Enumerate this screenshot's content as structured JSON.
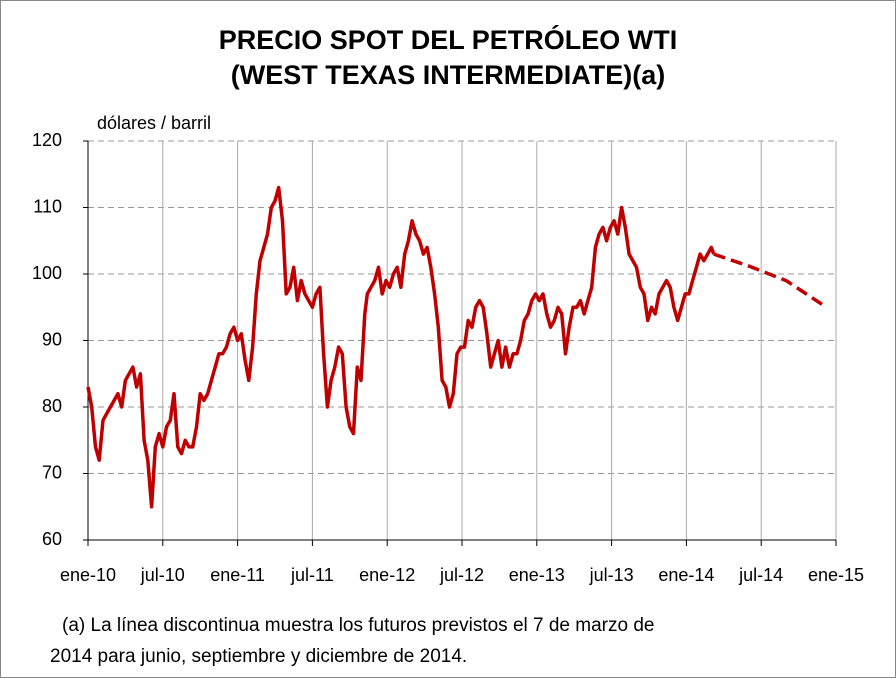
{
  "chart_data": {
    "type": "line",
    "title": [
      "PRECIO SPOT DEL PETRÓLEO WTI",
      "(WEST TEXAS INTERMEDIATE)(a)"
    ],
    "y_label": "dólares / barril",
    "note": [
      "(a) La línea discontinua  muestra los futuros  previstos  el 7 de marzo de",
      "2014 para  junio,  septiembre y diciembre de 2014."
    ],
    "xlim": [
      0,
      60
    ],
    "xticks": [
      {
        "value": 0,
        "label": "ene-10"
      },
      {
        "value": 6,
        "label": "jul-10"
      },
      {
        "value": 12,
        "label": "ene-11"
      },
      {
        "value": 18,
        "label": "jul-11"
      },
      {
        "value": 24,
        "label": "ene-12"
      },
      {
        "value": 30,
        "label": "jul-12"
      },
      {
        "value": 36,
        "label": "ene-13"
      },
      {
        "value": 42,
        "label": "jul-13"
      },
      {
        "value": 48,
        "label": "ene-14"
      },
      {
        "value": 54,
        "label": "jul-14"
      },
      {
        "value": 60,
        "label": "ene-15"
      }
    ],
    "ylim": [
      60,
      120
    ],
    "yticks": [
      60,
      70,
      80,
      90,
      100,
      110,
      120
    ],
    "grid": true,
    "series": [
      {
        "color": "#c00000",
        "dash": false,
        "x": [
          0,
          0.3,
          0.6,
          0.9,
          1.2,
          1.5,
          1.8,
          2.1,
          2.4,
          2.7,
          3,
          3.3,
          3.6,
          3.9,
          4.2,
          4.5,
          4.8,
          5.1,
          5.4,
          5.7,
          6,
          6.3,
          6.6,
          6.9,
          7.2,
          7.5,
          7.8,
          8.1,
          8.4,
          8.7,
          9,
          9.3,
          9.6,
          9.9,
          10.2,
          10.5,
          10.8,
          11.1,
          11.4,
          11.7,
          12,
          12.3,
          12.6,
          12.9,
          13.2,
          13.5,
          13.8,
          14.1,
          14.4,
          14.7,
          15,
          15.3,
          15.6,
          15.9,
          16.2,
          16.5,
          16.8,
          17.1,
          17.4,
          17.7,
          18,
          18.3,
          18.6,
          18.9,
          19.2,
          19.5,
          19.8,
          20.1,
          20.4,
          20.7,
          21,
          21.3,
          21.6,
          21.9,
          22.2,
          22.4,
          22.7,
          23,
          23.3,
          23.6,
          23.9,
          24.2,
          24.5,
          24.8,
          25.1,
          25.4,
          25.7,
          26,
          26.3,
          26.6,
          26.9,
          27.2,
          27.5,
          27.8,
          28.1,
          28.4,
          28.7,
          29,
          29.3,
          29.6,
          29.9,
          30.2,
          30.5,
          30.8,
          31.1,
          31.4,
          31.7,
          32,
          32.3,
          32.6,
          32.9,
          33.2,
          33.5,
          33.8,
          34.1,
          34.4,
          34.7,
          35,
          35.3,
          35.6,
          35.9,
          36.2,
          36.5,
          36.8,
          37.1,
          37.4,
          37.7,
          38,
          38.3,
          38.6,
          38.9,
          39.2,
          39.5,
          39.8,
          40.1,
          40.4,
          40.7,
          41,
          41.3,
          41.6,
          41.9,
          42.2,
          42.5,
          42.8,
          43.1,
          43.4,
          43.7,
          44,
          44.3,
          44.6,
          44.9,
          45.2,
          45.5,
          45.8,
          46.1,
          46.4,
          46.7,
          47,
          47.3,
          47.6,
          47.9,
          48.2,
          48.5,
          48.8,
          49.1,
          49.4,
          49.7,
          50,
          50.2
        ],
        "values": [
          83,
          80,
          74,
          72,
          78,
          79,
          80,
          81,
          82,
          80,
          84,
          85,
          86,
          83,
          85,
          75,
          72,
          65,
          74,
          76,
          74,
          77,
          78,
          82,
          74,
          73,
          75,
          74,
          74,
          77,
          82,
          81,
          82,
          84,
          86,
          88,
          88,
          89,
          91,
          92,
          90,
          91,
          87,
          84,
          89,
          97,
          102,
          104,
          106,
          110,
          111,
          113,
          108,
          97,
          98,
          101,
          96,
          99,
          97,
          96,
          95,
          97,
          98,
          88,
          80,
          84,
          86,
          89,
          88,
          80,
          77,
          76,
          86,
          84,
          94,
          97,
          98,
          99,
          101,
          97,
          99,
          98,
          100,
          101,
          98,
          103,
          105,
          108,
          106,
          105,
          103,
          104,
          101,
          97,
          92,
          84,
          83,
          80,
          82,
          88,
          89,
          89,
          93,
          92,
          95,
          96,
          95,
          91,
          86,
          88,
          90,
          86,
          89,
          86,
          88,
          88,
          90,
          93,
          94,
          96,
          97,
          96,
          97,
          94,
          92,
          93,
          95,
          94,
          88,
          92,
          95,
          95,
          96,
          94,
          96,
          98,
          104,
          106,
          107,
          105,
          107,
          108,
          106,
          110,
          107,
          103,
          102,
          101,
          98,
          97,
          93,
          95,
          94,
          97,
          98,
          99,
          98,
          95,
          93,
          95,
          97,
          97,
          99,
          101,
          103,
          102,
          103,
          104,
          103
        ]
      },
      {
        "color": "#c00000",
        "dash": true,
        "x": [
          50.2,
          53,
          56,
          59
        ],
        "values": [
          103,
          101.2,
          99,
          95.3
        ]
      }
    ]
  }
}
